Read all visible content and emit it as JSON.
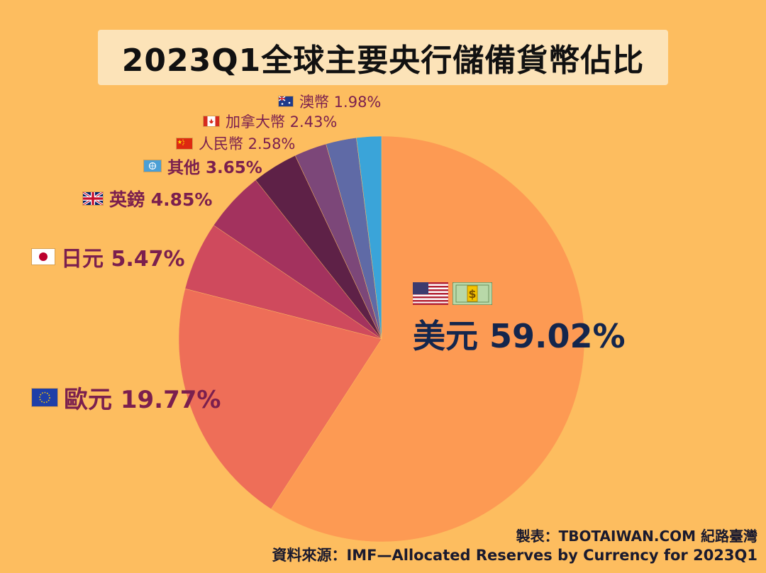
{
  "title": "2023Q1全球主要央行儲備貨幣佔比",
  "credits": {
    "made_by": "製表：TBOTAIWAN.COM 紀路臺灣",
    "source": "資料來源：IMF—Allocated Reserves by Currency for 2023Q1"
  },
  "chart_data": {
    "type": "pie",
    "title": "2023Q1全球主要央行儲備貨幣佔比",
    "start_angle_deg": 0,
    "direction": "clockwise",
    "slices": [
      {
        "label": "美元 59.02%",
        "name": "美元",
        "value": 59.02,
        "color": "#fd9a53"
      },
      {
        "label": "歐元 19.77%",
        "name": "歐元",
        "value": 19.77,
        "color": "#ee6e58"
      },
      {
        "label": "日元 5.47%",
        "name": "日元",
        "value": 5.47,
        "color": "#cf4a5d"
      },
      {
        "label": "英鎊 4.85%",
        "name": "英鎊",
        "value": 4.85,
        "color": "#a3325e"
      },
      {
        "label": "其他 3.65%",
        "name": "其他",
        "value": 3.65,
        "color": "#5e2147"
      },
      {
        "label": "人民幣 2.58%",
        "name": "人民幣",
        "value": 2.58,
        "color": "#7c4779"
      },
      {
        "label": "加拿大幣 2.43%",
        "name": "加拿大幣",
        "value": 2.43,
        "color": "#5f6aa6"
      },
      {
        "label": "澳幣 1.98%",
        "name": "澳幣",
        "value": 1.98,
        "color": "#3aa4d9"
      }
    ]
  }
}
